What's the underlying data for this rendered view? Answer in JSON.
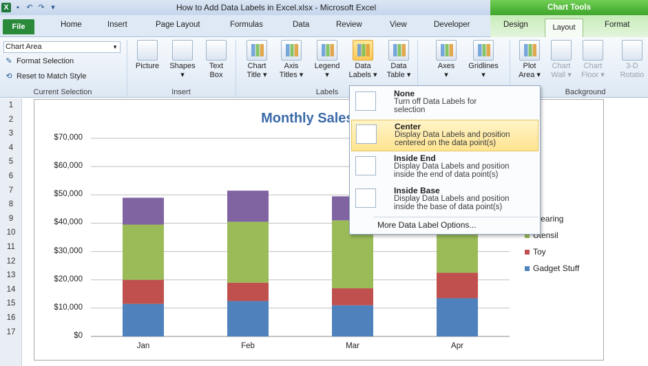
{
  "window": {
    "title": "How to Add Data Labels in Excel.xlsx - Microsoft Excel",
    "context_tab_header": "Chart Tools"
  },
  "tabs": [
    "File",
    "Home",
    "Insert",
    "Page Layout",
    "Formulas",
    "Data",
    "Review",
    "View",
    "Developer",
    "Design",
    "Layout",
    "Format"
  ],
  "ribbon": {
    "current_selection": {
      "combo_value": "Chart Area",
      "format_selection": "Format Selection",
      "reset_style": "Reset to Match Style",
      "label": "Current Selection"
    },
    "insert": {
      "picture": "Picture",
      "shapes": "Shapes",
      "text_box_1": "Text",
      "text_box_2": "Box",
      "label": "Insert"
    },
    "labels": {
      "chart_title_1": "Chart",
      "chart_title_2": "Title",
      "axis_titles_1": "Axis",
      "axis_titles_2": "Titles",
      "legend": "Legend",
      "data_labels_1": "Data",
      "data_labels_2": "Labels",
      "data_table_1": "Data",
      "data_table_2": "Table",
      "label": "Labels"
    },
    "axes": {
      "axes": "Axes",
      "gridlines": "Gridlines"
    },
    "background": {
      "plot_area_1": "Plot",
      "plot_area_2": "Area",
      "chart_wall_1": "Chart",
      "chart_wall_2": "Wall",
      "chart_floor_1": "Chart",
      "chart_floor_2": "Floor",
      "rotation_1": "3-D",
      "rotation_2": "Rotatio",
      "label": "Background"
    }
  },
  "rows": [
    "1",
    "2",
    "3",
    "4",
    "5",
    "6",
    "7",
    "8",
    "9",
    "10",
    "11",
    "12",
    "13",
    "14",
    "15",
    "16",
    "17"
  ],
  "chart_data": {
    "type": "bar",
    "title": "Monthly Sales vs.",
    "categories": [
      "Jan",
      "Feb",
      "Mar",
      "Apr"
    ],
    "y_ticks": [
      "$0",
      "$10,000",
      "$20,000",
      "$30,000",
      "$40,000",
      "$50,000",
      "$60,000",
      "$70,000"
    ],
    "ylim": [
      0,
      70000
    ],
    "stacked": true,
    "legend_position": "right",
    "series": [
      {
        "name": "Gadget Stuff",
        "color": "#4f81bd",
        "values": [
          11500,
          12500,
          11000,
          13500
        ]
      },
      {
        "name": "Toy",
        "color": "#c0504d",
        "values": [
          8500,
          6500,
          6000,
          9000
        ]
      },
      {
        "name": "Utensil",
        "color": "#9bbb59",
        "values": [
          19500,
          21500,
          24000,
          13500
        ]
      },
      {
        "name": "Wearing",
        "color": "#8064a2",
        "values": [
          9500,
          11000,
          8500,
          0
        ]
      }
    ],
    "legend_labels": [
      "Wearing",
      "Utensil",
      "Toy",
      "Gadget Stuff"
    ]
  },
  "dropdown": {
    "items": [
      {
        "title": "None",
        "desc_1": "Turn off Data Labels for",
        "desc_2": "selection"
      },
      {
        "title": "Center",
        "desc_1": "Display Data Labels and position",
        "desc_2": "centered on the data point(s)"
      },
      {
        "title": "Inside End",
        "desc_1": "Display Data Labels and position",
        "desc_2": "inside the end of data point(s)"
      },
      {
        "title": "Inside Base",
        "desc_1": "Display Data Labels and position",
        "desc_2": "inside the base of data point(s)"
      }
    ],
    "more": "More Data Label Options..."
  }
}
